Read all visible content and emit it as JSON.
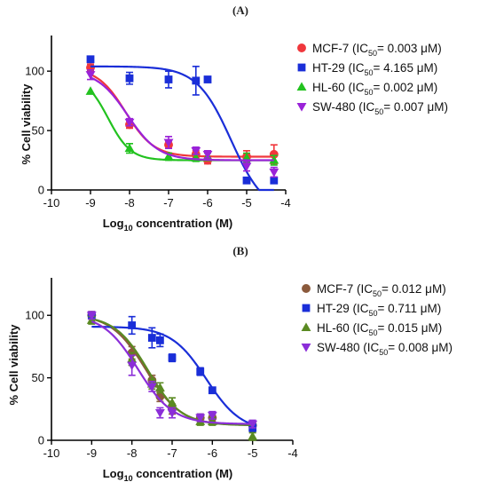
{
  "chart_data": [
    {
      "type": "scatter",
      "panel_label": "(A)",
      "title": "",
      "xlabel": "Log10 concentration (M)",
      "xlabel_main": "Log",
      "xlabel_sub": "10",
      "xlabel_rest": " concentration (M)",
      "ylabel": "% Cell viability",
      "xlim": [
        -10,
        -4
      ],
      "ylim": [
        0,
        130
      ],
      "xticks": [
        -10,
        -9,
        -8,
        -7,
        -6,
        -5,
        -4
      ],
      "yticks": [
        0,
        50,
        100
      ],
      "xtick_labels": [
        "-10",
        "-9",
        "-8",
        "-7",
        "-6",
        "-5",
        "-4"
      ],
      "ytick_labels": [
        "0",
        "50",
        "100"
      ],
      "legend_position": "right",
      "series": [
        {
          "name": "MCF-7",
          "legend": {
            "pre": "MCF-7 (IC",
            "sub": "50",
            "post": "= 0.003 μM)"
          },
          "color": "#f0373c",
          "marker": "circle",
          "x": [
            -9,
            -8,
            -7,
            -6.3,
            -6,
            -5,
            -4.3
          ],
          "y": [
            103,
            55,
            38,
            30,
            25,
            28,
            30
          ],
          "err": [
            3,
            3,
            3,
            3,
            3,
            5,
            8
          ],
          "curve": {
            "bottom": 28,
            "top": 103,
            "logEC50": -8.1,
            "hill": 1.2
          }
        },
        {
          "name": "HT-29",
          "legend": {
            "pre": "HT-29 (IC",
            "sub": "50",
            "post": "= 4.165 μM)"
          },
          "color": "#1a2ed8",
          "marker": "square",
          "x": [
            -9,
            -8,
            -7,
            -6.3,
            -6,
            -5,
            -4.3
          ],
          "y": [
            110,
            94,
            93,
            92,
            93,
            8,
            8
          ],
          "err": [
            0,
            5,
            7,
            12,
            0,
            0,
            0
          ],
          "curve": {
            "bottom": -20,
            "top": 104,
            "logEC50": -5.4,
            "hill": 1.0
          }
        },
        {
          "name": "HL-60",
          "legend": {
            "pre": "HL-60 (IC",
            "sub": "50",
            "post": "= 0.002 μM)"
          },
          "color": "#22c21f",
          "marker": "triangle",
          "x": [
            -9,
            -8,
            -7,
            -6.3,
            -6,
            -5,
            -4.3
          ],
          "y": [
            83,
            35,
            28,
            27,
            28,
            27,
            25
          ],
          "err": [
            0,
            4,
            3,
            3,
            3,
            4,
            4
          ],
          "curve": {
            "bottom": 25,
            "top": 96,
            "logEC50": -8.55,
            "hill": 1.5
          }
        },
        {
          "name": "SW-480",
          "legend": {
            "pre": "SW-480 (IC",
            "sub": "50",
            "post": "= 0.007 μM)"
          },
          "color": "#9a22d8",
          "marker": "triangle-down",
          "x": [
            -9,
            -8,
            -7,
            -6.3,
            -6,
            -5,
            -4.3
          ],
          "y": [
            97,
            57,
            40,
            33,
            30,
            20,
            15
          ],
          "err": [
            4,
            3,
            5,
            3,
            3,
            4,
            4
          ],
          "curve": {
            "bottom": 25,
            "top": 101,
            "logEC50": -8.05,
            "hill": 1.1
          }
        }
      ]
    },
    {
      "type": "scatter",
      "panel_label": "(B)",
      "title": "",
      "xlabel": "Log10 concentration (M)",
      "xlabel_main": "Log",
      "xlabel_sub": "10",
      "xlabel_rest": " concentration (M)",
      "ylabel": "% Cell viability",
      "xlim": [
        -10,
        -4
      ],
      "ylim": [
        0,
        130
      ],
      "xticks": [
        -10,
        -9,
        -8,
        -7,
        -6,
        -5,
        -4
      ],
      "yticks": [
        0,
        50,
        100
      ],
      "xtick_labels": [
        "-10",
        "-9",
        "-8",
        "-7",
        "-6",
        "-5",
        "-4"
      ],
      "ytick_labels": [
        "0",
        "50",
        "100"
      ],
      "legend_position": "right",
      "series": [
        {
          "name": "MCF-7",
          "legend": {
            "pre": "MCF-7 (IC",
            "sub": "50",
            "post": "= 0.012 μM)"
          },
          "color": "#8b5a3c",
          "marker": "circle",
          "x": [
            -9,
            -8,
            -7.5,
            -7.3,
            -7,
            -6.3,
            -6,
            -5
          ],
          "y": [
            100,
            70,
            48,
            35,
            25,
            18,
            18,
            12
          ],
          "err": [
            3,
            5,
            4,
            4,
            4,
            3,
            3,
            3
          ],
          "curve": {
            "bottom": 12,
            "top": 101,
            "logEC50": -7.65,
            "hill": 1.0
          }
        },
        {
          "name": "HT-29",
          "legend": {
            "pre": "HT-29 (IC",
            "sub": "50",
            "post": "= 0.711 μM)"
          },
          "color": "#1a2ed8",
          "marker": "square",
          "x": [
            -9,
            -8,
            -7.5,
            -7.3,
            -7,
            -6.3,
            -6,
            -5
          ],
          "y": [
            100,
            92,
            82,
            80,
            66,
            55,
            40,
            10
          ],
          "err": [
            0,
            7,
            8,
            5,
            3,
            3,
            0,
            3
          ],
          "curve": {
            "bottom": 7,
            "top": 91,
            "logEC50": -6.15,
            "hill": 1.0
          }
        },
        {
          "name": "HL-60",
          "legend": {
            "pre": "HL-60 (IC",
            "sub": "50",
            "post": "= 0.015 μM)"
          },
          "color": "#5a8a22",
          "marker": "triangle",
          "x": [
            -9,
            -8,
            -7.5,
            -7.3,
            -7,
            -6.3,
            -6,
            -5
          ],
          "y": [
            96,
            65,
            45,
            42,
            30,
            15,
            15,
            3
          ],
          "err": [
            3,
            5,
            4,
            4,
            4,
            3,
            3,
            3
          ],
          "curve": {
            "bottom": 12,
            "top": 100,
            "logEC50": -7.6,
            "hill": 1.05
          }
        },
        {
          "name": "SW-480",
          "legend": {
            "pre": "SW-480 (IC",
            "sub": "50",
            "post": "= 0.008 μM)"
          },
          "color": "#8b2ed8",
          "marker": "triangle-down",
          "x": [
            -9,
            -8,
            -7.5,
            -7.3,
            -7,
            -6.3,
            -6,
            -5
          ],
          "y": [
            100,
            60,
            43,
            22,
            22,
            18,
            20,
            13
          ],
          "err": [
            3,
            8,
            4,
            4,
            4,
            3,
            3,
            3
          ],
          "curve": {
            "bottom": 13,
            "top": 101,
            "logEC50": -7.85,
            "hill": 1.0
          }
        }
      ]
    }
  ]
}
